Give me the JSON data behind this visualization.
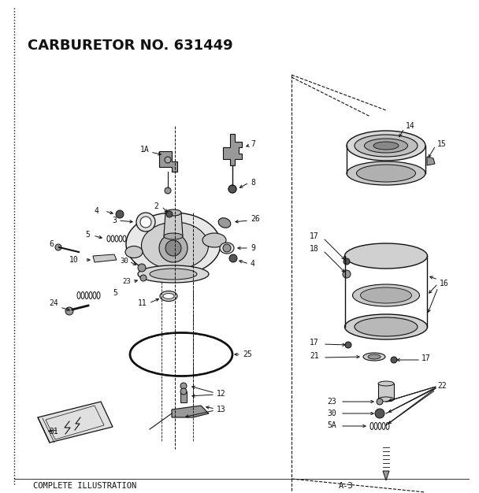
{
  "title": "CARBURETOR NO. 631449",
  "bottom_left_text": "COMPLETE ILLUSTRATION",
  "bottom_right_text": "A-3",
  "bg_color": "#ffffff",
  "line_color": "#111111",
  "gray_light": "#cccccc",
  "gray_mid": "#999999",
  "gray_dark": "#555555"
}
